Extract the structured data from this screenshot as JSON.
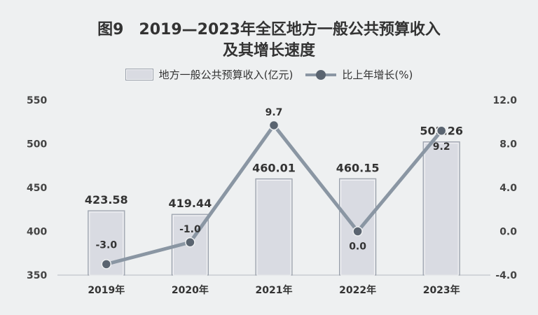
{
  "title": {
    "line1": "图9　2019—2023年全区地方一般公共预算收入",
    "line2": "及其增长速度"
  },
  "legend": {
    "bar": "地方一般公共预算收入(亿元)",
    "line": "比上年增长(%)"
  },
  "colors": {
    "background": "#eef0f1",
    "bar_fill": "#d9dbe2",
    "bar_border": "#9aa1ab",
    "line": "#8a96a3",
    "marker": "#5a6470"
  },
  "chart_data": {
    "type": "bar",
    "categories": [
      "2019年",
      "2020年",
      "2021年",
      "2022年",
      "2023年"
    ],
    "series": [
      {
        "name": "地方一般公共预算收入(亿元)",
        "type": "bar",
        "axis": "left",
        "values": [
          423.58,
          419.44,
          460.01,
          460.15,
          502.26
        ],
        "labels": [
          "423.58",
          "419.44",
          "460.01",
          "460.15",
          "502.26"
        ]
      },
      {
        "name": "比上年增长(%)",
        "type": "line",
        "axis": "right",
        "values": [
          -3.0,
          -1.0,
          9.7,
          0.0,
          9.2
        ],
        "labels": [
          "-3.0",
          "-1.0",
          "9.7",
          "0.0",
          "9.2"
        ]
      }
    ],
    "y_left": {
      "min": 350,
      "max": 550,
      "ticks": [
        "550",
        "500",
        "450",
        "400",
        "350"
      ],
      "tick_values": [
        550,
        500,
        450,
        400,
        350
      ]
    },
    "y_right": {
      "min": -4.0,
      "max": 12.0,
      "ticks": [
        "12.0",
        "8.0",
        "4.0",
        "0.0",
        "-4.0"
      ],
      "tick_values": [
        12,
        8,
        4,
        0,
        -4
      ]
    },
    "grid": false,
    "legend_position": "top"
  }
}
